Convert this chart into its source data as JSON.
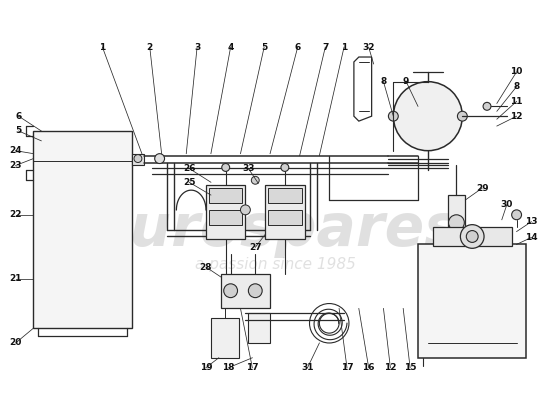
{
  "bg_color": "#ffffff",
  "line_color": "#2a2a2a",
  "watermark1": "eurospares",
  "watermark2": "a passion since 1985",
  "figsize": [
    5.5,
    4.0
  ],
  "dpi": 100
}
